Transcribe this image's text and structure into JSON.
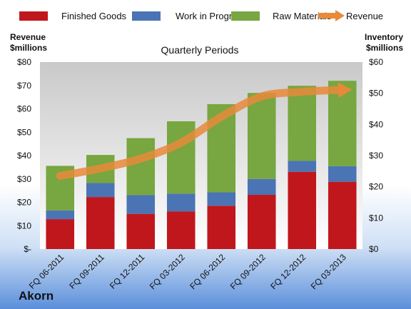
{
  "chart_data": {
    "type": "bar",
    "subtitle": "Quarterly Periods",
    "categories": [
      "FQ 06-2011",
      "FQ 09-2011",
      "FQ 12-2011",
      "FQ 03-2012",
      "FQ 06-2012",
      "FQ 09-2012",
      "FQ 12-2012",
      "FQ 03-2013"
    ],
    "series": [
      {
        "name": "Finished Goods",
        "axis": "right",
        "stacked": true,
        "color": "#c0171c",
        "values": [
          9.6,
          16.7,
          11.3,
          12.1,
          13.9,
          17.4,
          24.8,
          21.6
        ]
      },
      {
        "name": "Work in Progress",
        "axis": "right",
        "stacked": true,
        "color": "#4a74b4",
        "values": [
          2.8,
          4.5,
          6.0,
          5.7,
          4.3,
          5.1,
          3.5,
          5.0
        ]
      },
      {
        "name": "Raw Materials",
        "axis": "right",
        "stacked": true,
        "color": "#78a640",
        "values": [
          14.3,
          9.0,
          18.3,
          23.2,
          28.3,
          27.6,
          24.1,
          27.4
        ]
      },
      {
        "name": "Revenue",
        "axis": "left",
        "type": "line",
        "color": "#e88a3a",
        "values": [
          31.3,
          34.5,
          38.7,
          45.5,
          56.6,
          65.3,
          67.3,
          68.1
        ]
      }
    ],
    "left_axis": {
      "label_line1": "Revenue",
      "label_line2": "$millions",
      "range": [
        0,
        80
      ],
      "ticks": [
        "$-",
        "$10",
        "$20",
        "$30",
        "$40",
        "$50",
        "$60",
        "$70",
        "$80"
      ]
    },
    "right_axis": {
      "label_line1": "Inventory",
      "label_line2": "$millions",
      "range": [
        0,
        60
      ],
      "ticks": [
        "$0",
        "$10",
        "$20",
        "$30",
        "$40",
        "$50",
        "$60"
      ]
    },
    "legend_position": "top",
    "grid": false
  },
  "company": "Akorn"
}
